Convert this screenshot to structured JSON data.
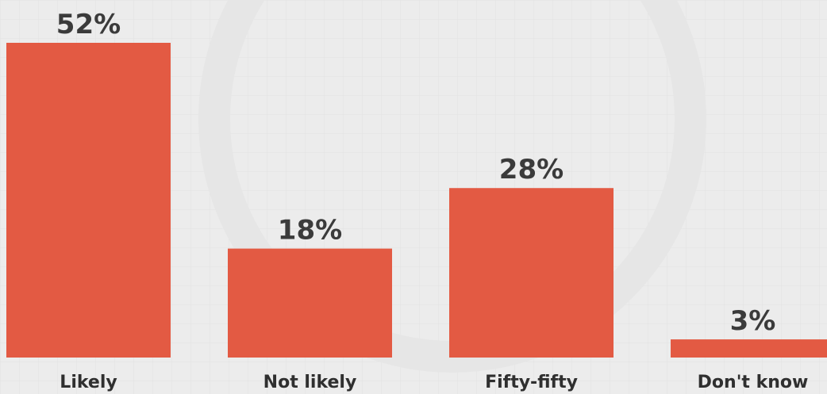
{
  "chart_data": {
    "type": "bar",
    "categories": [
      "Likely",
      "Not likely",
      "Fifty-fifty",
      "Don't know"
    ],
    "values": [
      52,
      18,
      28,
      3
    ],
    "value_labels": [
      "52%",
      "18%",
      "28%",
      "3%"
    ],
    "title": "",
    "xlabel": "",
    "ylabel": "",
    "ylim": [
      0,
      52
    ],
    "grid": false,
    "bar_color": "#e35a43",
    "background_color": "#ececec"
  }
}
